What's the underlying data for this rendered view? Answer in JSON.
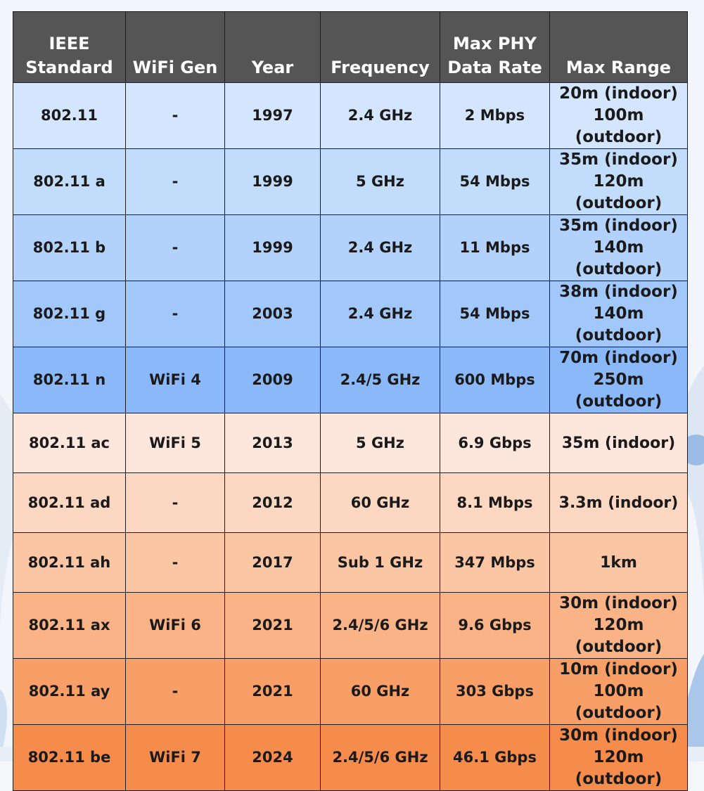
{
  "table": {
    "columns": [
      "IEEE\nStandard",
      "WiFi Gen",
      "Year",
      "Frequency",
      "Max PHY\nData Rate",
      "Max Range"
    ],
    "header_lines": [
      [
        "IEEE",
        "Standard"
      ],
      [
        "WiFi Gen"
      ],
      [
        "Year"
      ],
      [
        "Frequency"
      ],
      [
        "Max PHY",
        "Data Rate"
      ],
      [
        "Max Range"
      ]
    ],
    "rows": [
      {
        "standard": "802.11",
        "gen": "-",
        "year": "1997",
        "frequency": "2.4 GHz",
        "rate": "2 Mbps",
        "range": [
          "20m (indoor)",
          "100m (outdoor)"
        ],
        "color": "#d4e6fd"
      },
      {
        "standard": "802.11 a",
        "gen": "-",
        "year": "1999",
        "frequency": "5 GHz",
        "rate": "54 Mbps",
        "range": [
          "35m (indoor)",
          "120m (outdoor)"
        ],
        "color": "#c2dcfb"
      },
      {
        "standard": "802.11 b",
        "gen": "-",
        "year": "1999",
        "frequency": "2.4 GHz",
        "rate": "11 Mbps",
        "range": [
          "35m (indoor)",
          "140m (outdoor)"
        ],
        "color": "#b2d2fb"
      },
      {
        "standard": "802.11 g",
        "gen": "-",
        "year": "2003",
        "frequency": "2.4 GHz",
        "rate": "54 Mbps",
        "range": [
          "38m (indoor)",
          "140m (outdoor)"
        ],
        "color": "#a2c8fb"
      },
      {
        "standard": "802.11 n",
        "gen": "WiFi 4",
        "year": "2009",
        "frequency": "2.4/5 GHz",
        "rate": "600 Mbps",
        "range": [
          "70m (indoor)",
          "250m (outdoor)"
        ],
        "color": "#8ab8f8"
      },
      {
        "standard": "802.11 ac",
        "gen": "WiFi 5",
        "year": "2013",
        "frequency": "5 GHz",
        "rate": "6.9 Gbps",
        "range": [
          "35m (indoor)"
        ],
        "color": "#fde6db"
      },
      {
        "standard": "802.11 ad",
        "gen": "-",
        "year": "2012",
        "frequency": "60 GHz",
        "rate": "8.1 Mbps",
        "range": [
          "3.3m (indoor)"
        ],
        "color": "#fcd8c2"
      },
      {
        "standard": "802.11 ah",
        "gen": "-",
        "year": "2017",
        "frequency": "Sub 1 GHz",
        "rate": "347 Mbps",
        "range": [
          "1km"
        ],
        "color": "#fbc6a4"
      },
      {
        "standard": "802.11 ax",
        "gen": "WiFi 6",
        "year": "2021",
        "frequency": "2.4/5/6 GHz",
        "rate": "9.6 Gbps",
        "range": [
          "30m (indoor)",
          "120m (outdoor)"
        ],
        "color": "#f9b387"
      },
      {
        "standard": "802.11 ay",
        "gen": "-",
        "year": "2021",
        "frequency": "60 GHz",
        "rate": "303 Gbps",
        "range": [
          "10m (indoor)",
          "100m (outdoor)"
        ],
        "color": "#f89f68"
      },
      {
        "standard": "802.11 be",
        "gen": "WiFi 7",
        "year": "2024",
        "frequency": "2.4/5/6 GHz",
        "rate": "46.1 Gbps",
        "range": [
          "30m (indoor)",
          "120m (outdoor)"
        ],
        "color": "#f58c4c"
      }
    ]
  }
}
